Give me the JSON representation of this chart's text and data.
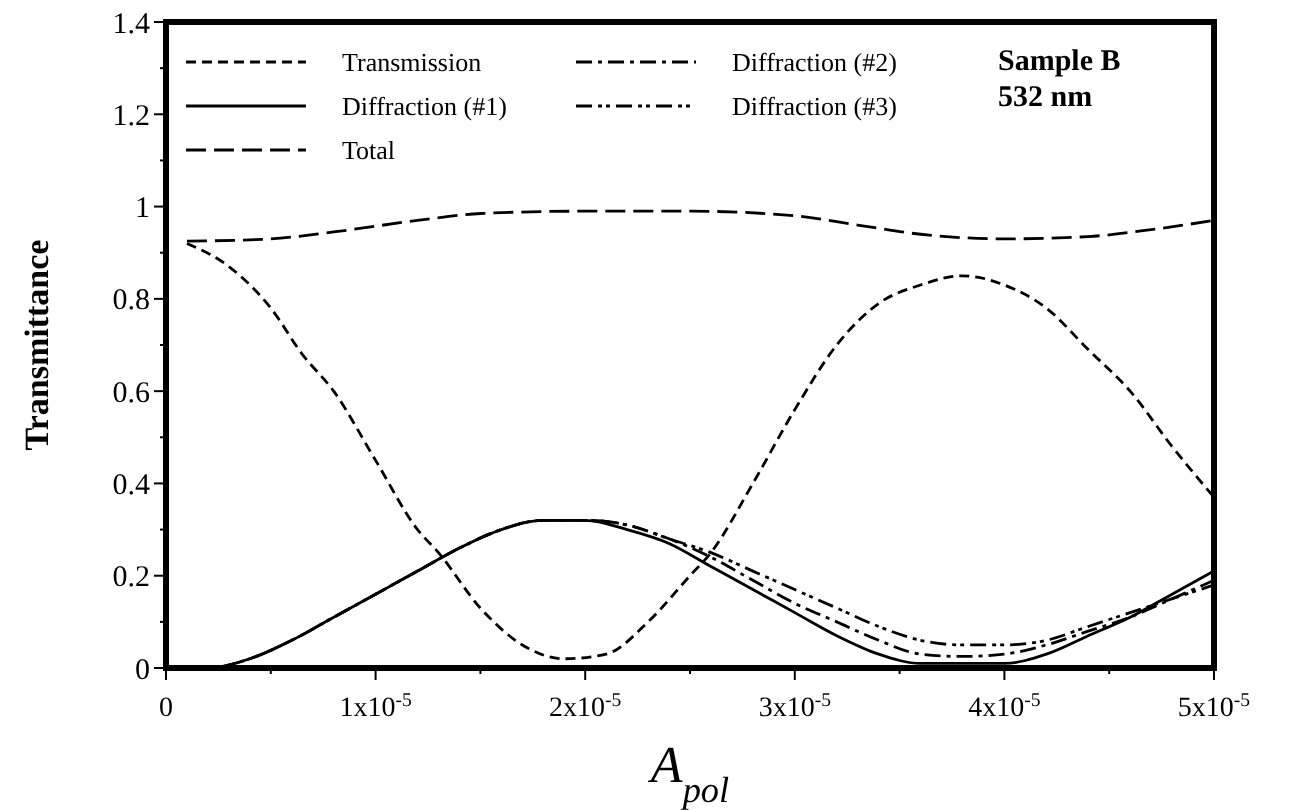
{
  "chart_data": {
    "type": "line",
    "xlabel": "A$_{pol}$",
    "ylabel": "Transmittance",
    "annotations": [
      "Sample B",
      "532 nm"
    ],
    "xlim": [
      0,
      5e-05
    ],
    "ylim": [
      0,
      1.4
    ],
    "xticks": [
      {
        "value": 0,
        "label": "0"
      },
      {
        "value": 5e-06,
        "label": null
      },
      {
        "value": 1e-05,
        "label": "1x10$^{-5}$"
      },
      {
        "value": 1.5e-05,
        "label": null
      },
      {
        "value": 2e-05,
        "label": "2x10$^{-5}$"
      },
      {
        "value": 2.5e-05,
        "label": null
      },
      {
        "value": 3e-05,
        "label": "3x10$^{-5}$"
      },
      {
        "value": 3.5e-05,
        "label": null
      },
      {
        "value": 4e-05,
        "label": "4x10$^{-5}$"
      },
      {
        "value": 4.5e-05,
        "label": null
      },
      {
        "value": 5e-05,
        "label": "5x10$^{-5}$"
      }
    ],
    "yticks": [
      0,
      {
        "value": 0.1,
        "label": null
      },
      0.2,
      {
        "value": 0.3,
        "label": null
      },
      0.4,
      {
        "value": 0.5,
        "label": null
      },
      0.6,
      {
        "value": 0.7,
        "label": null
      },
      0.8,
      {
        "value": 0.9,
        "label": null
      },
      1,
      {
        "value": 1.1,
        "label": null
      },
      1.2,
      {
        "value": 1.3,
        "label": null
      },
      1.4
    ],
    "grid": false,
    "legend": "top left",
    "marker": "none",
    "series": [
      {
        "name": "Transmission",
        "color": "#000000",
        "line_style": "dashed",
        "x": [
          1e-06,
          3e-06,
          5e-06,
          6.5e-06,
          8e-06,
          1e-05,
          1.2e-05,
          1.3e-05,
          1.5e-05,
          1.7e-05,
          1.9e-05,
          2.1e-05,
          2.3e-05,
          2.5e-05,
          2.6e-05,
          2.8e-05,
          3e-05,
          3.2e-05,
          3.4e-05,
          3.6e-05,
          3.8e-05,
          4e-05,
          4.2e-05,
          4.4e-05,
          4.6e-05,
          4.8e-05,
          5e-05
        ],
        "values": [
          0.92,
          0.87,
          0.78,
          0.68,
          0.6,
          0.45,
          0.3,
          0.25,
          0.13,
          0.05,
          0.02,
          0.03,
          0.1,
          0.2,
          0.25,
          0.4,
          0.56,
          0.7,
          0.79,
          0.83,
          0.85,
          0.83,
          0.78,
          0.69,
          0.6,
          0.48,
          0.37
        ]
      },
      {
        "name": "Diffraction (#1)",
        "color": "#000000",
        "line_style": "solid",
        "x": [
          1e-06,
          2e-06,
          4e-06,
          6e-06,
          8e-06,
          1e-05,
          1.2e-05,
          1.4e-05,
          1.6e-05,
          1.8e-05,
          2e-05,
          2.2e-05,
          2.4e-05,
          2.6e-05,
          2.8e-05,
          3e-05,
          3.2e-05,
          3.4e-05,
          3.6e-05,
          3.8e-05,
          4e-05,
          4.2e-05,
          4.4e-05,
          4.6e-05,
          4.8e-05,
          5e-05
        ],
        "values": [
          0,
          0,
          0.02,
          0.06,
          0.11,
          0.16,
          0.21,
          0.26,
          0.3,
          0.32,
          0.32,
          0.3,
          0.27,
          0.22,
          0.17,
          0.12,
          0.07,
          0.03,
          0.01,
          0.01,
          0.01,
          0.03,
          0.07,
          0.11,
          0.16,
          0.21
        ]
      },
      {
        "name": "Total",
        "color": "#000000",
        "line_style": "dashed",
        "x": [
          1e-06,
          5e-06,
          8e-06,
          1.2e-05,
          1.5e-05,
          2e-05,
          2.5e-05,
          3e-05,
          3.3e-05,
          3.6e-05,
          4e-05,
          4.4e-05,
          4.7e-05,
          5e-05
        ],
        "values": [
          0.925,
          0.93,
          0.945,
          0.97,
          0.985,
          0.99,
          0.99,
          0.98,
          0.96,
          0.94,
          0.93,
          0.935,
          0.95,
          0.97
        ]
      },
      {
        "name": "Diffraction (#2)",
        "color": "#000000",
        "line_style": "dashed",
        "x": [
          1e-06,
          2e-06,
          4e-06,
          6e-06,
          8e-06,
          1e-05,
          1.2e-05,
          1.4e-05,
          1.6e-05,
          1.8e-05,
          2e-05,
          2.2e-05,
          2.4e-05,
          2.6e-05,
          2.8e-05,
          3e-05,
          3.2e-05,
          3.4e-05,
          3.6e-05,
          3.8e-05,
          4e-05,
          4.2e-05,
          4.4e-05,
          4.6e-05,
          4.8e-05,
          5e-05
        ],
        "values": [
          0,
          0,
          0.02,
          0.06,
          0.11,
          0.16,
          0.21,
          0.26,
          0.3,
          0.32,
          0.32,
          0.31,
          0.28,
          0.24,
          0.19,
          0.14,
          0.1,
          0.06,
          0.03,
          0.025,
          0.03,
          0.05,
          0.08,
          0.11,
          0.15,
          0.19
        ]
      },
      {
        "name": "Diffraction (#3)",
        "color": "#000000",
        "line_style": "dotted",
        "x": [
          1e-06,
          2e-06,
          4e-06,
          6e-06,
          8e-06,
          1e-05,
          1.2e-05,
          1.4e-05,
          1.6e-05,
          1.8e-05,
          2e-05,
          2.2e-05,
          2.4e-05,
          2.6e-05,
          2.8e-05,
          3e-05,
          3.2e-05,
          3.4e-05,
          3.6e-05,
          3.8e-05,
          4e-05,
          4.2e-05,
          4.4e-05,
          4.6e-05,
          4.8e-05,
          5e-05
        ],
        "values": [
          0,
          0,
          0.02,
          0.06,
          0.11,
          0.16,
          0.21,
          0.26,
          0.3,
          0.32,
          0.32,
          0.31,
          0.28,
          0.25,
          0.21,
          0.17,
          0.13,
          0.09,
          0.06,
          0.05,
          0.05,
          0.06,
          0.09,
          0.12,
          0.15,
          0.18
        ]
      }
    ]
  }
}
